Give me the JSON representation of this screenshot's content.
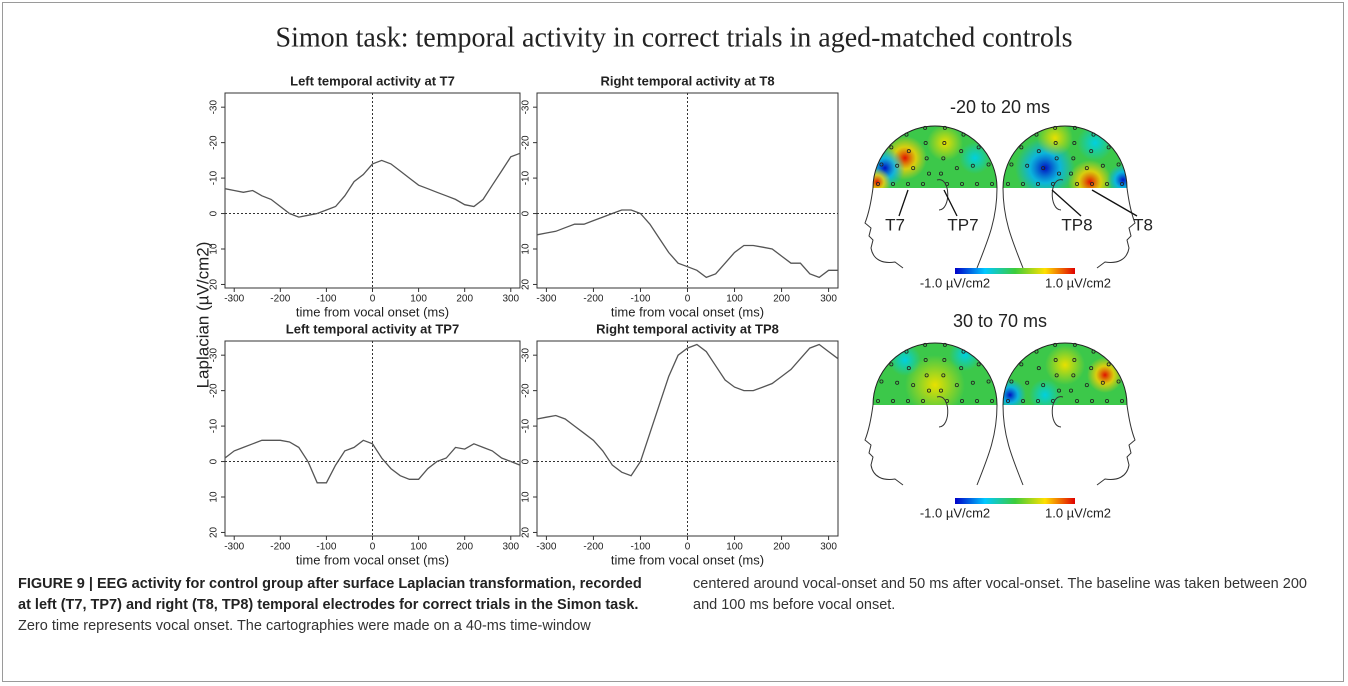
{
  "figure_title": "Simon task: temporal activity in correct trials in aged-matched controls",
  "y_axis_label": "Laplacian (µV/cm2)",
  "chart_data": [
    {
      "type": "line",
      "title": "Left temporal activity at T7",
      "x_label": "time from vocal onset (ms)",
      "x": [
        -320,
        -300,
        -280,
        -260,
        -240,
        -220,
        -200,
        -180,
        -160,
        -140,
        -120,
        -100,
        -80,
        -60,
        -40,
        -20,
        0,
        20,
        40,
        60,
        80,
        100,
        120,
        140,
        160,
        180,
        200,
        220,
        240,
        260,
        280,
        300,
        320
      ],
      "series": [
        {
          "color": "#555555",
          "values": [
            -7,
            -6.5,
            -6,
            -6.5,
            -5,
            -4,
            -2,
            0,
            1,
            0.5,
            0,
            -1,
            -2,
            -5,
            -9,
            -11,
            -14,
            -15,
            -14,
            -12,
            -10,
            -8,
            -7,
            -6,
            -5,
            -4,
            -2.5,
            -2,
            -4,
            -8,
            -12,
            -16,
            -17
          ]
        }
      ],
      "xlim": [
        -320,
        320
      ],
      "xticks": [
        -300,
        -200,
        -100,
        0,
        100,
        200,
        300
      ],
      "ylim": [
        -34,
        21
      ],
      "y_inverted": true,
      "yticks": [
        -30,
        -20,
        -10,
        0,
        10,
        20
      ]
    },
    {
      "type": "line",
      "title": "Right temporal activity at T8",
      "x_label": "time from vocal onset (ms)",
      "x": [
        -320,
        -300,
        -280,
        -260,
        -240,
        -220,
        -200,
        -180,
        -160,
        -140,
        -120,
        -100,
        -80,
        -60,
        -40,
        -20,
        0,
        20,
        40,
        60,
        80,
        100,
        120,
        140,
        160,
        180,
        200,
        220,
        240,
        260,
        280,
        300,
        320
      ],
      "series": [
        {
          "color": "#555555",
          "values": [
            6,
            5.5,
            5,
            4,
            3,
            3,
            2,
            1,
            0,
            -1,
            -1,
            0,
            3,
            7,
            11,
            14,
            15,
            16,
            18,
            17,
            14,
            11,
            9,
            9,
            9.5,
            10,
            12,
            14,
            14,
            17,
            18,
            16,
            16
          ]
        }
      ],
      "xlim": [
        -320,
        320
      ],
      "xticks": [
        -300,
        -200,
        -100,
        0,
        100,
        200,
        300
      ],
      "ylim": [
        -34,
        21
      ],
      "y_inverted": true,
      "yticks": [
        -30,
        -20,
        -10,
        0,
        10,
        20
      ]
    },
    {
      "type": "line",
      "title": "Left temporal activity at TP7",
      "x_label": "time from vocal onset (ms)",
      "x": [
        -320,
        -300,
        -280,
        -260,
        -240,
        -220,
        -200,
        -180,
        -160,
        -140,
        -120,
        -100,
        -80,
        -60,
        -40,
        -20,
        0,
        20,
        40,
        60,
        80,
        100,
        120,
        140,
        160,
        180,
        200,
        220,
        240,
        260,
        280,
        300,
        320
      ],
      "series": [
        {
          "color": "#555555",
          "values": [
            -1,
            -3,
            -4,
            -5,
            -6,
            -6,
            -6,
            -5.5,
            -4,
            0,
            6,
            6,
            1,
            -3,
            -4,
            -6,
            -5,
            -1,
            2,
            4,
            5,
            5,
            2,
            0,
            -1,
            -4,
            -3.5,
            -5,
            -4,
            -3,
            -1,
            0,
            1
          ]
        }
      ],
      "xlim": [
        -320,
        320
      ],
      "xticks": [
        -300,
        -200,
        -100,
        0,
        100,
        200,
        300
      ],
      "ylim": [
        -34,
        21
      ],
      "y_inverted": true,
      "yticks": [
        -30,
        -20,
        -10,
        0,
        10,
        20
      ]
    },
    {
      "type": "line",
      "title": "Right temporal activity at TP8",
      "x_label": "time from vocal onset (ms)",
      "x": [
        -320,
        -300,
        -280,
        -260,
        -240,
        -220,
        -200,
        -180,
        -160,
        -140,
        -120,
        -100,
        -80,
        -60,
        -40,
        -20,
        0,
        20,
        40,
        60,
        80,
        100,
        120,
        140,
        160,
        180,
        200,
        220,
        240,
        260,
        280,
        300,
        320
      ],
      "series": [
        {
          "color": "#555555",
          "values": [
            -12,
            -12.5,
            -13,
            -12,
            -10,
            -8,
            -6,
            -3,
            1,
            3,
            4,
            0,
            -8,
            -16,
            -24,
            -30,
            -32,
            -33,
            -31,
            -27,
            -23,
            -21,
            -20,
            -20,
            -21,
            -22,
            -24,
            -26,
            -29,
            -32,
            -33,
            -31,
            -29
          ]
        }
      ],
      "xlim": [
        -320,
        320
      ],
      "xticks": [
        -300,
        -200,
        -100,
        0,
        100,
        200,
        300
      ],
      "ylim": [
        -34,
        21
      ],
      "y_inverted": true,
      "yticks": [
        -30,
        -20,
        -10,
        0,
        10,
        20
      ]
    }
  ],
  "topomaps": [
    {
      "title": "-20 to 20 ms",
      "electrodes": [
        "T7",
        "TP7",
        "TP8",
        "T8"
      ],
      "colorbar_labels": [
        "-1.0 µV/cm2",
        "1.0 µV/cm2"
      ]
    },
    {
      "title": "30 to 70 ms",
      "colorbar_labels": [
        "-1.0 µV/cm2",
        "1.0 µV/cm2"
      ]
    }
  ],
  "caption": {
    "label": "FIGURE 9 |",
    "bold": "EEG activity for control group after surface Laplacian transformation, recorded at left (T7, TP7) and right (T8, TP8) temporal electrodes for correct trials in the Simon task.",
    "text": "Zero time represents vocal onset. The cartographies were made on a 40-ms time-window centered around vocal-onset and 50 ms after vocal-onset. The baseline was taken between 200 and 100 ms before vocal onset."
  }
}
